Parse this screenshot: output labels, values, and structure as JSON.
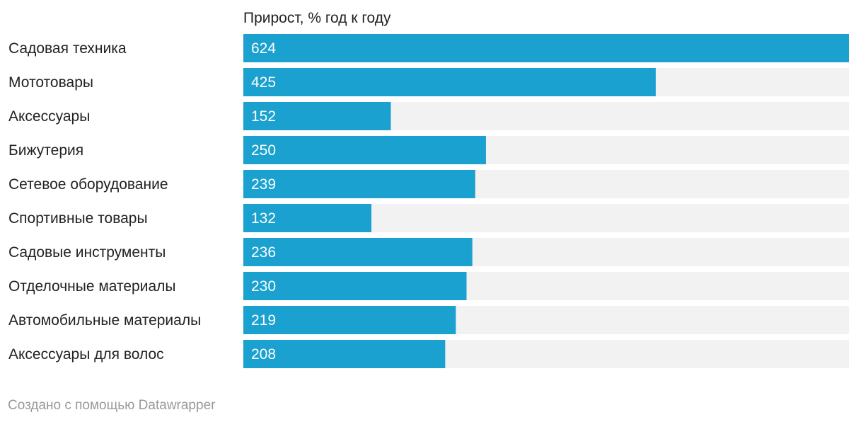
{
  "chart_data": {
    "type": "bar",
    "orientation": "horizontal",
    "column_header": "Прирост, % год к году",
    "categories": [
      "Садовая техника",
      "Мототовары",
      "Аксессуары",
      "Бижутерия",
      "Сетевое оборудование",
      "Спортивные товары",
      "Садовые инструменты",
      "Отделочные материалы",
      "Автомобильные материалы",
      "Аксессуары для волос"
    ],
    "values": [
      624,
      425,
      152,
      250,
      239,
      132,
      236,
      230,
      219,
      208
    ],
    "value_labels": [
      "624",
      "425",
      "152",
      "250",
      "239",
      "132",
      "236",
      "230",
      "219",
      "208"
    ],
    "xlim": [
      0,
      624
    ],
    "grid": false,
    "legend": "none",
    "colors": {
      "bar": "#1ba1cf",
      "track": "#f2f2f2"
    }
  },
  "footer": {
    "credit": "Создано с помощью Datawrapper"
  }
}
